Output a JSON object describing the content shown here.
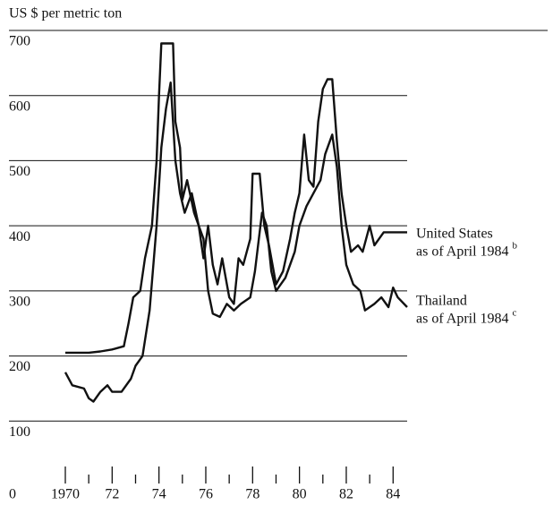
{
  "chart_data": {
    "type": "line",
    "y_axis_label": "US $ per metric ton",
    "xlim": [
      1970,
      1984.6
    ],
    "ylim": [
      0,
      700
    ],
    "yticks": [
      0,
      100,
      200,
      300,
      400,
      500,
      600,
      700
    ],
    "xticks": [
      {
        "value": 1970,
        "label": "1970"
      },
      {
        "value": 1972,
        "label": "72"
      },
      {
        "value": 1974,
        "label": "74"
      },
      {
        "value": 1976,
        "label": "76"
      },
      {
        "value": 1978,
        "label": "78"
      },
      {
        "value": 1980,
        "label": "80"
      },
      {
        "value": 1982,
        "label": "82"
      },
      {
        "value": 1984,
        "label": "84"
      }
    ],
    "xticks_minor": [
      1971,
      1973,
      1975,
      1977,
      1979,
      1981,
      1983
    ],
    "grid": true,
    "series": [
      {
        "name": "United States",
        "annotation": "as of April 1984",
        "note": "b",
        "color": "#111111",
        "x": [
          1970.0,
          1971.0,
          1971.5,
          1972.0,
          1972.5,
          1972.7,
          1972.9,
          1973.2,
          1973.4,
          1973.7,
          1973.9,
          1974.0,
          1974.1,
          1974.6,
          1974.7,
          1974.9,
          1975.0,
          1975.2,
          1975.5,
          1975.7,
          1975.9,
          1976.1,
          1976.3,
          1976.5,
          1976.7,
          1977.0,
          1977.2,
          1977.4,
          1977.6,
          1977.9,
          1978.0,
          1978.3,
          1978.5,
          1978.7,
          1979.0,
          1979.3,
          1979.6,
          1979.8,
          1980.0,
          1980.2,
          1980.4,
          1980.6,
          1980.8,
          1981.0,
          1981.2,
          1981.4,
          1981.6,
          1981.8,
          1982.0,
          1982.2,
          1982.5,
          1982.7,
          1983.0,
          1983.2,
          1983.6,
          1984.6
        ],
        "values": [
          205,
          205,
          207,
          210,
          215,
          250,
          290,
          300,
          350,
          400,
          500,
          600,
          680,
          680,
          560,
          520,
          440,
          470,
          420,
          400,
          350,
          400,
          340,
          310,
          350,
          290,
          280,
          350,
          340,
          380,
          480,
          480,
          400,
          370,
          310,
          330,
          380,
          420,
          450,
          540,
          470,
          460,
          560,
          610,
          625,
          625,
          530,
          450,
          400,
          360,
          370,
          360,
          400,
          370,
          390,
          390
        ]
      },
      {
        "name": "Thailand",
        "annotation": "as of April 1984",
        "note": "c",
        "color": "#111111",
        "x": [
          1970.0,
          1970.3,
          1970.8,
          1971.0,
          1971.2,
          1971.5,
          1971.8,
          1972.0,
          1972.4,
          1972.8,
          1973.0,
          1973.3,
          1973.6,
          1973.9,
          1974.1,
          1974.3,
          1974.5,
          1974.7,
          1974.9,
          1975.1,
          1975.4,
          1975.7,
          1975.9,
          1976.1,
          1976.3,
          1976.6,
          1976.9,
          1977.2,
          1977.5,
          1977.9,
          1978.1,
          1978.4,
          1978.6,
          1978.8,
          1979.0,
          1979.4,
          1979.8,
          1980.0,
          1980.3,
          1980.6,
          1980.9,
          1981.1,
          1981.4,
          1981.6,
          1981.8,
          1982.0,
          1982.3,
          1982.6,
          1982.8,
          1983.2,
          1983.5,
          1983.8,
          1984.0,
          1984.2,
          1984.6
        ],
        "values": [
          175,
          155,
          150,
          135,
          130,
          145,
          155,
          145,
          145,
          165,
          185,
          200,
          270,
          400,
          520,
          580,
          620,
          500,
          450,
          420,
          450,
          400,
          380,
          300,
          265,
          260,
          280,
          270,
          280,
          290,
          330,
          420,
          400,
          330,
          300,
          320,
          360,
          400,
          430,
          450,
          470,
          510,
          540,
          490,
          400,
          340,
          310,
          300,
          270,
          280,
          290,
          275,
          305,
          290,
          275
        ]
      }
    ]
  }
}
